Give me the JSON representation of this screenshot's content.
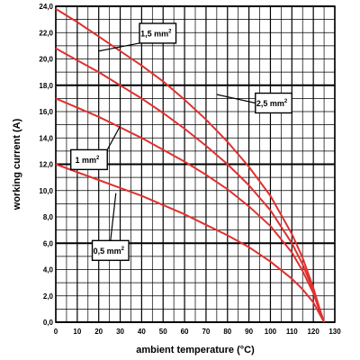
{
  "chart_data": {
    "type": "line",
    "xlabel": "ambient temperature (°C)",
    "ylabel": "working current (A)",
    "xlim": [
      0,
      130
    ],
    "ylim": [
      0,
      24
    ],
    "x_ticks": [
      "0",
      "10",
      "20",
      "30",
      "40",
      "50",
      "60",
      "70",
      "80",
      "90",
      "100",
      "110",
      "120",
      "130"
    ],
    "y_ticks": [
      "0,0",
      "2,0",
      "4,0",
      "6,0",
      "8,0",
      "10,0",
      "12,0",
      "14,0",
      "16,0",
      "18,0",
      "20,0",
      "22,0",
      "24,0"
    ],
    "grid": true,
    "line_color": "#e03030",
    "series": [
      {
        "name": "1,5 mm²",
        "label_main": "1,5 mm",
        "label_sup": "2",
        "x": [
          0,
          10,
          20,
          30,
          40,
          50,
          60,
          70,
          80,
          90,
          100,
          110,
          115,
          120,
          123,
          125
        ],
        "y": [
          23.8,
          22.8,
          21.7,
          20.6,
          19.5,
          18.3,
          16.9,
          15.4,
          13.7,
          11.8,
          9.6,
          6.7,
          4.9,
          2.6,
          1.0,
          0.0
        ]
      },
      {
        "name": "2,5 mm²",
        "label_main": "2,5 mm",
        "label_sup": "2",
        "x": [
          0,
          10,
          20,
          30,
          40,
          50,
          60,
          70,
          80,
          90,
          100,
          110,
          115,
          120,
          123,
          125
        ],
        "y": [
          20.8,
          19.9,
          19.0,
          18.0,
          17.0,
          15.9,
          14.7,
          13.4,
          12.0,
          10.4,
          8.5,
          6.0,
          4.4,
          2.4,
          0.9,
          0.0
        ]
      },
      {
        "name": "1 mm²",
        "label_main": "1 mm",
        "label_sup": "2",
        "x": [
          0,
          10,
          20,
          30,
          40,
          50,
          60,
          70,
          80,
          90,
          100,
          110,
          115,
          120,
          123,
          125
        ],
        "y": [
          17.0,
          16.3,
          15.6,
          14.8,
          14.0,
          13.1,
          12.2,
          11.2,
          10.1,
          8.8,
          7.3,
          5.3,
          3.9,
          2.2,
          0.8,
          0.0
        ]
      },
      {
        "name": "0,5 mm²",
        "label_main": "0,5 mm",
        "label_sup": "2",
        "x": [
          0,
          10,
          20,
          30,
          40,
          50,
          60,
          70,
          80,
          90,
          100,
          110,
          115,
          120,
          123,
          125
        ],
        "y": [
          12.0,
          11.4,
          10.8,
          10.2,
          9.6,
          8.9,
          8.2,
          7.4,
          6.6,
          5.7,
          4.6,
          3.3,
          2.5,
          1.5,
          0.6,
          0.0
        ]
      }
    ],
    "callouts": [
      {
        "series": "1,5 mm²",
        "box_x": 39,
        "box_y": 22.7,
        "box_w": 17,
        "box_h": 1.5,
        "leader_to_x": 20,
        "leader_to_y": 20.6
      },
      {
        "series": "2,5 mm²",
        "box_x": 93,
        "box_y": 17.4,
        "box_w": 17,
        "box_h": 1.5,
        "leader_to_x": 75,
        "leader_to_y": 17.3
      },
      {
        "series": "1 mm²",
        "box_x": 7,
        "box_y": 13.1,
        "box_w": 17,
        "box_h": 1.5,
        "leader_to_x": 30,
        "leader_to_y": 14.9
      },
      {
        "series": "0,5 mm²",
        "box_x": 17,
        "box_y": 6.2,
        "box_w": 17,
        "box_h": 1.5,
        "leader_to_x": 28,
        "leader_to_y": 9.8
      }
    ]
  }
}
